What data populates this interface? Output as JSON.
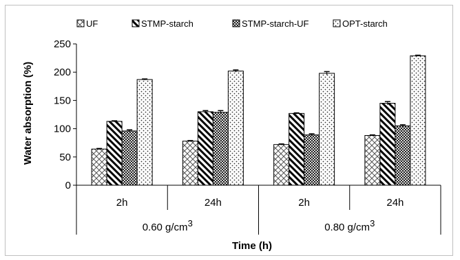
{
  "chart_data": {
    "type": "bar",
    "title": "",
    "xlabel": "Time (h)",
    "ylabel": "Water absorption (%)",
    "ylim": [
      0,
      250
    ],
    "y_ticks": [
      0,
      50,
      100,
      150,
      200,
      250
    ],
    "legend_position": "top",
    "groups": [
      {
        "label": "0.60  g/cm",
        "sup": "3",
        "categories": [
          "2h",
          "24h"
        ]
      },
      {
        "label": "0.80  g/cm",
        "sup": "3",
        "categories": [
          "2h",
          "24h"
        ]
      }
    ],
    "categories": [
      "2h",
      "24h",
      "2h",
      "24h"
    ],
    "series": [
      {
        "name": "UF",
        "pattern": "crosshatch",
        "values": [
          64,
          78,
          72,
          88
        ],
        "errors": [
          1,
          1,
          1,
          1
        ]
      },
      {
        "name": "STMP-starch",
        "pattern": "diagonal",
        "values": [
          113,
          130,
          127,
          145
        ],
        "errors": [
          1,
          2,
          1,
          3
        ]
      },
      {
        "name": "STMP-starch-UF",
        "pattern": "checker",
        "values": [
          96,
          129,
          89,
          105
        ],
        "errors": [
          2,
          3,
          2,
          2
        ]
      },
      {
        "name": "OPT-starch",
        "pattern": "dots",
        "values": [
          187,
          202,
          198,
          229
        ],
        "errors": [
          1,
          2,
          3,
          1
        ]
      }
    ],
    "grid": false
  }
}
